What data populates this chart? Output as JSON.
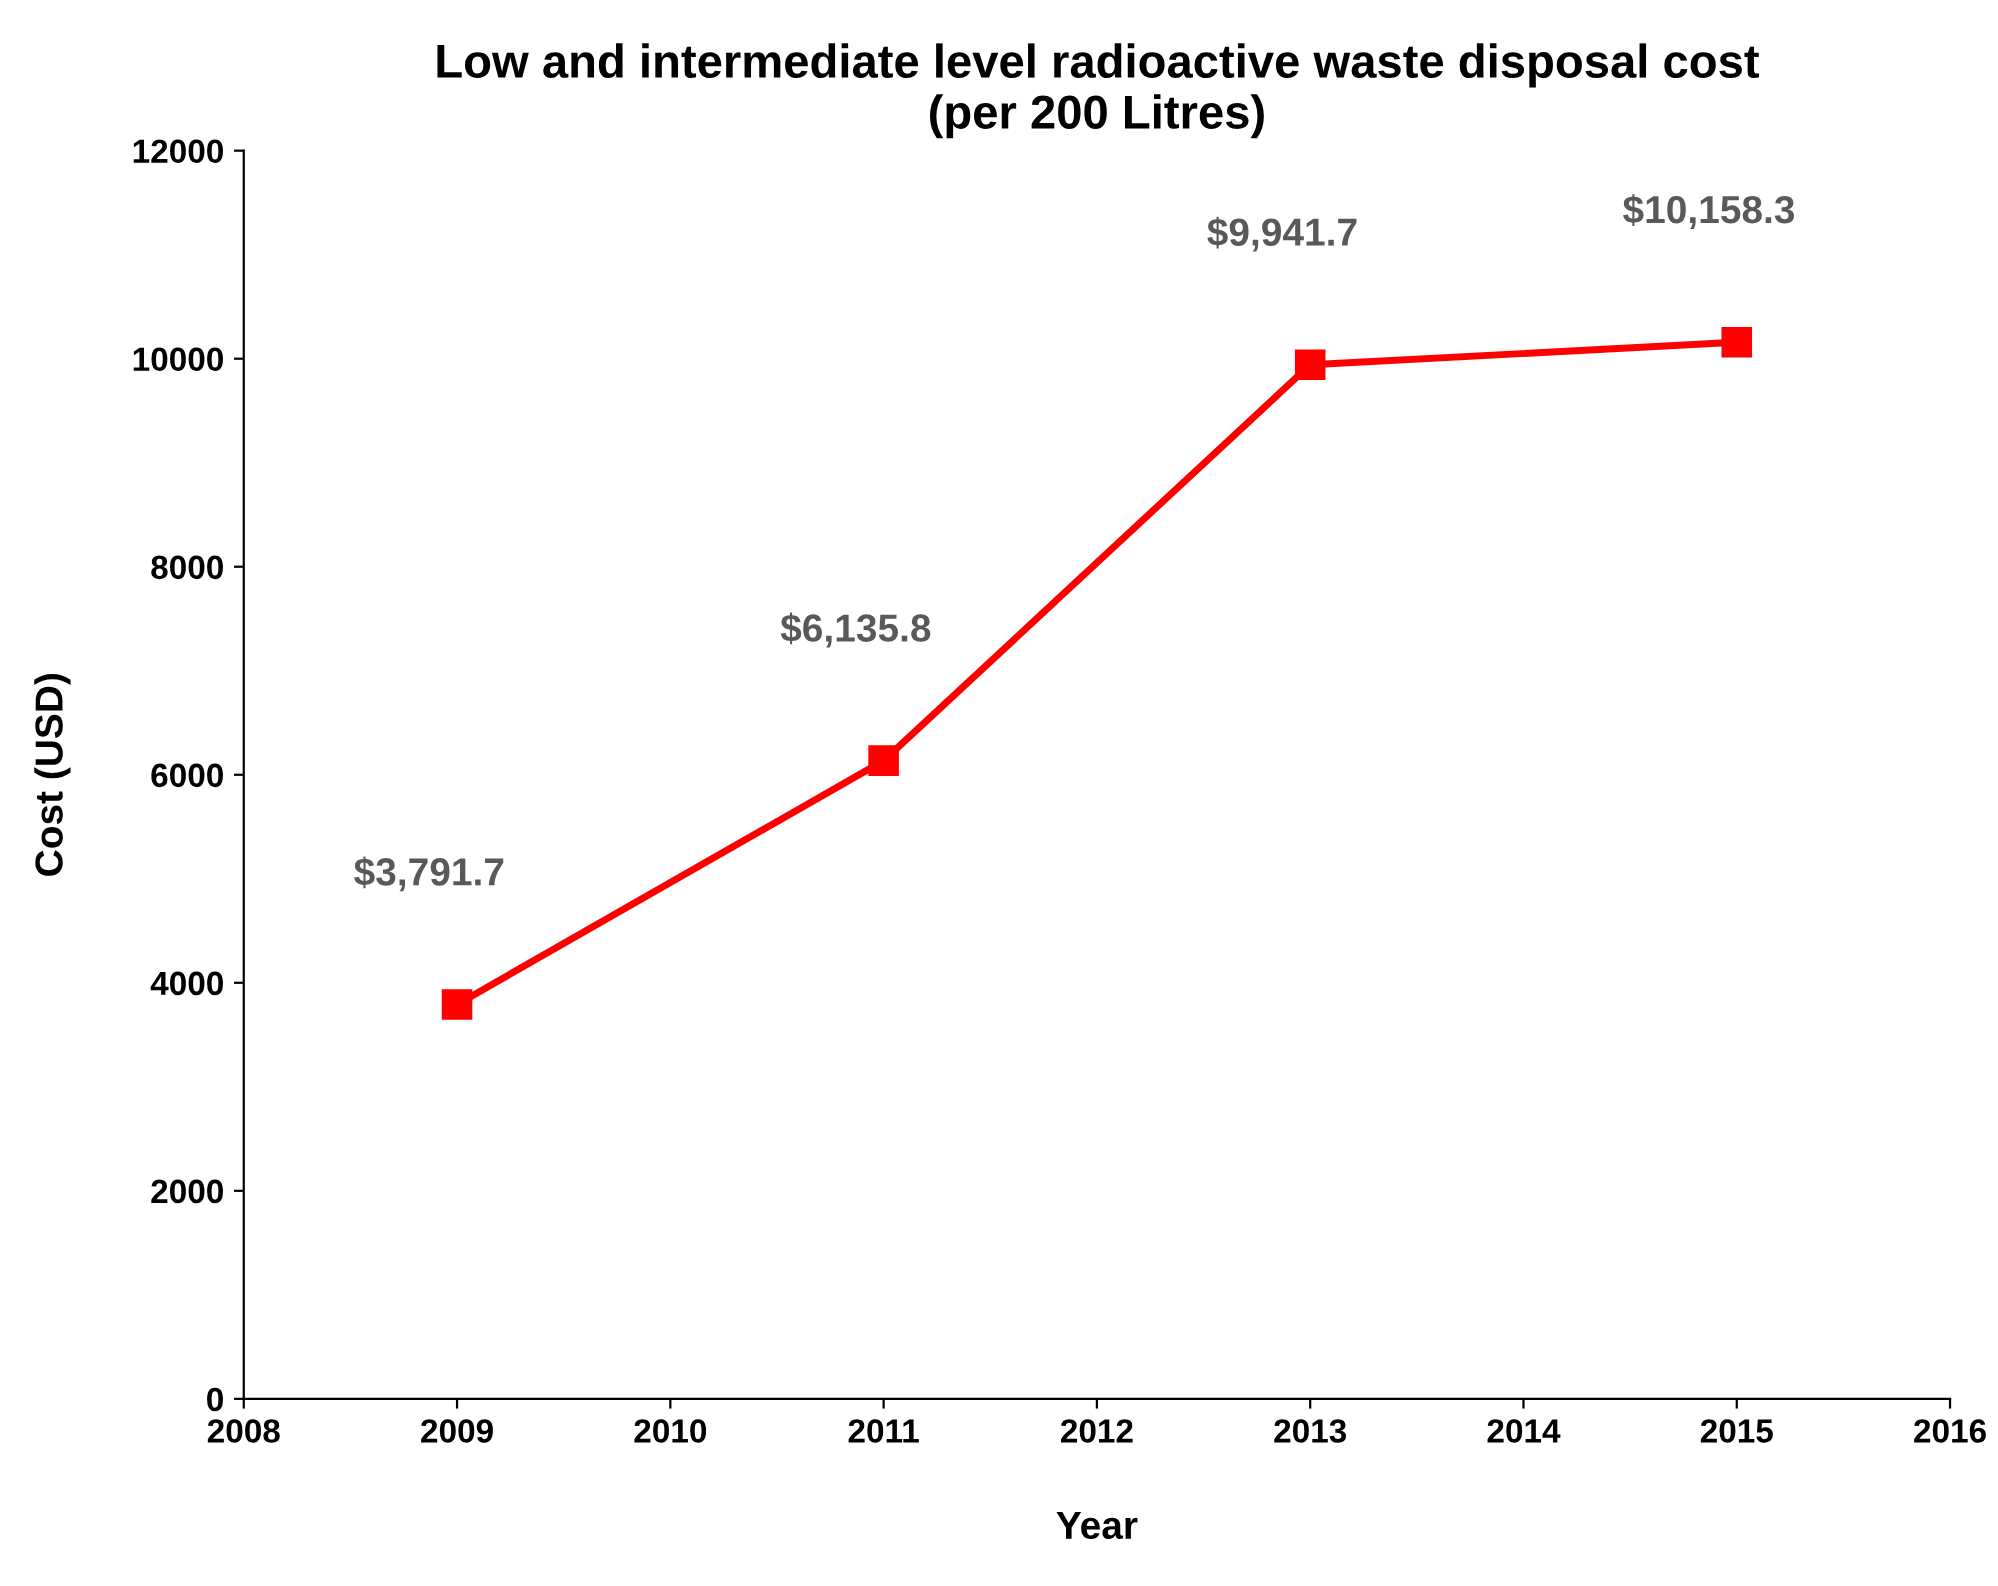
{
  "chart_data": {
    "type": "line",
    "title": "Low and intermediate level radioactive waste disposal cost\n(per 200 Litres)",
    "xlabel": "Year",
    "ylabel": "Cost (USD)",
    "x": [
      2009,
      2011,
      2013,
      2015
    ],
    "series": [
      {
        "color": "#ff0000",
        "values": [
          3791.7,
          6135.8,
          9941.7,
          10158.3
        ],
        "value_labels": [
          "$3,791.7",
          "$6,135.8",
          "$9,941.7",
          "$10,158.3"
        ]
      }
    ],
    "xlim": [
      2008,
      2016
    ],
    "xticks": [
      2008,
      2009,
      2010,
      2011,
      2012,
      2013,
      2014,
      2015,
      2016
    ],
    "ylim": [
      0,
      12000
    ],
    "yticks": [
      0,
      2000,
      4000,
      6000,
      8000,
      10000,
      12000
    ],
    "grid": false,
    "legend": false,
    "marker": "square",
    "line_style": "solid"
  }
}
